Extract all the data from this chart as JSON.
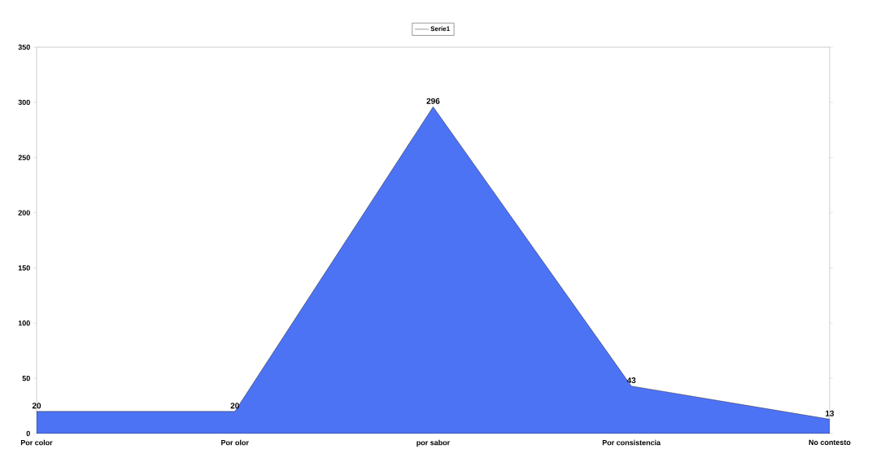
{
  "chart_data": {
    "type": "area",
    "categories": [
      "Por color",
      "Por olor",
      "por sabor",
      "Por consistencia",
      "No contesto"
    ],
    "series": [
      {
        "name": "Serie1",
        "color": "#4d73f5",
        "values": [
          20,
          20,
          296,
          43,
          13
        ]
      }
    ],
    "ylim": [
      0,
      350
    ],
    "yticks": [
      0,
      50,
      100,
      150,
      200,
      250,
      300,
      350
    ],
    "data_labels": true,
    "legend": "top",
    "grid": false
  }
}
